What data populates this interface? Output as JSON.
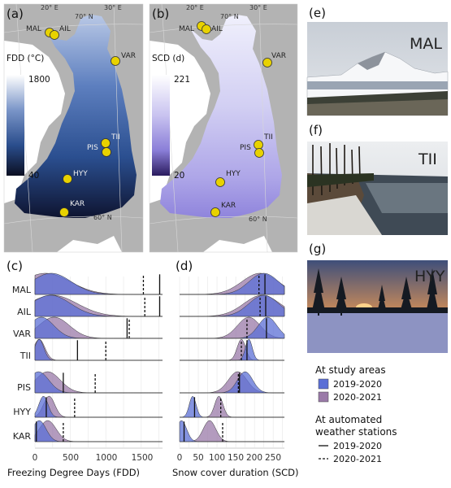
{
  "panels": {
    "a": "(a)",
    "b": "(b)",
    "c": "(c)",
    "d": "(d)",
    "e": "(e)",
    "f": "(f)",
    "g": "(g)"
  },
  "map_a": {
    "colorbar_title": "FDD (°C)",
    "colorbar_max": "1800",
    "colorbar_min": "40",
    "color_high": "#ffffff",
    "color_low": "#0b0f22",
    "graticule": {
      "lon20": "20° E",
      "lon30": "30° E",
      "lat70": "70° N",
      "lat60": "60° N"
    },
    "sites": [
      {
        "code": "MAL"
      },
      {
        "code": "AIL"
      },
      {
        "code": "VAR"
      },
      {
        "code": "TII"
      },
      {
        "code": "PIS"
      },
      {
        "code": "HYY"
      },
      {
        "code": "KAR"
      }
    ]
  },
  "map_b": {
    "colorbar_title": "SCD (d)",
    "colorbar_max": "221",
    "colorbar_min": "20",
    "color_high": "#ffffff",
    "color_low": "#2a1b5e",
    "graticule": {
      "lon20": "20° E",
      "lon30": "30° E",
      "lat70": "70° N",
      "lat60": "60° N"
    },
    "sites": [
      {
        "code": "MAL"
      },
      {
        "code": "AIL"
      },
      {
        "code": "VAR"
      },
      {
        "code": "TII"
      },
      {
        "code": "PIS"
      },
      {
        "code": "HYY"
      },
      {
        "code": "KAR"
      }
    ]
  },
  "ridge_c": {
    "xlabel": "Freezing Degree Days (FDD)",
    "xticks": [
      "0",
      "500",
      "1000",
      "1500"
    ],
    "sites": [
      "MAL",
      "AIL",
      "VAR",
      "TII",
      "PIS",
      "HYY",
      "KAR"
    ]
  },
  "ridge_d": {
    "xlabel": "Snow cover duration (SCD)",
    "xticks": [
      "0",
      "50",
      "100",
      "150",
      "200",
      "250"
    ]
  },
  "photos": {
    "e": "MAL",
    "f": "TII",
    "g": "HYY"
  },
  "legend": {
    "study_title": "At study areas",
    "series1": "2019-2020",
    "series2": "2020-2021",
    "aws_title_line1": "At automated",
    "aws_title_line2": "weather stations",
    "aws1": "2019-2020",
    "aws2": "2020-2021",
    "color1": "#5b6fd6",
    "color2": "#9a7aa8"
  },
  "chart_data": [
    {
      "type": "area",
      "panel": "c",
      "xlabel": "Freezing Degree Days (FDD)",
      "xlim": [
        0,
        1800
      ],
      "categories": [
        "MAL",
        "AIL",
        "VAR",
        "TII",
        "PIS",
        "HYY",
        "KAR"
      ],
      "series": [
        {
          "name": "2019-2020",
          "peaks": [
            230,
            220,
            90,
            60,
            50,
            120,
            60
          ],
          "aws": [
            1760,
            1760,
            1300,
            600,
            400,
            160,
            20
          ]
        },
        {
          "name": "2020-2021",
          "peaks": [
            150,
            250,
            270,
            60,
            180,
            200,
            180
          ],
          "aws": [
            1530,
            1550,
            1330,
            1000,
            850,
            560,
            400
          ]
        }
      ]
    },
    {
      "type": "area",
      "panel": "d",
      "xlabel": "Snow cover duration (SCD)",
      "xlim": [
        0,
        280
      ],
      "categories": [
        "MAL",
        "AIL",
        "VAR",
        "TII",
        "PIS",
        "HYY",
        "KAR"
      ],
      "series": [
        {
          "name": "2019-2020",
          "peaks": [
            225,
            225,
            235,
            185,
            175,
            35,
            5
          ],
          "aws": [
            228,
            230,
            232,
            180,
            160,
            40,
            12
          ]
        },
        {
          "name": "2020-2021",
          "peaks": [
            215,
            220,
            185,
            165,
            155,
            105,
            80
          ],
          "aws": [
            212,
            215,
            180,
            165,
            157,
            110,
            115
          ]
        }
      ]
    }
  ]
}
